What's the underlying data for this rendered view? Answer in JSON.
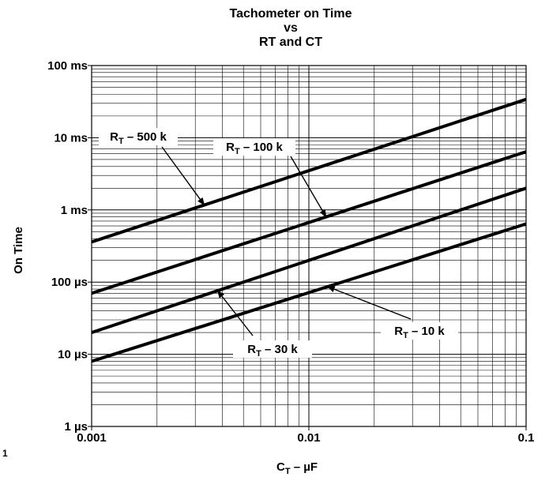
{
  "chart_data": {
    "type": "line",
    "title": [
      "Tachometer on Time",
      "vs",
      "RT and CT"
    ],
    "xlabel": {
      "main": "C",
      "sub": "T",
      "rest": " – µF"
    },
    "ylabel": "On Time",
    "x_scale": "log",
    "y_scale": "log",
    "xlim": [
      0.001,
      0.1
    ],
    "ylim_seconds": [
      1e-06,
      0.1
    ],
    "x_ticks": [
      {
        "value": 0.001,
        "label": "0.001"
      },
      {
        "value": 0.01,
        "label": "0.01"
      },
      {
        "value": 0.1,
        "label": "0.1"
      }
    ],
    "y_ticks": [
      {
        "value": 0.1,
        "label": "100 ms"
      },
      {
        "value": 0.01,
        "label": "10 ms"
      },
      {
        "value": 0.001,
        "label": "1 ms"
      },
      {
        "value": 0.0001,
        "label": "100 µs"
      },
      {
        "value": 1e-05,
        "label": "10 µs"
      },
      {
        "value": 1e-06,
        "label": "1 µs"
      }
    ],
    "grid": true,
    "series": [
      {
        "name": "RT – 500 k",
        "x": [
          0.001,
          0.1
        ],
        "y": [
          0.00036,
          0.034
        ]
      },
      {
        "name": "RT – 100 k",
        "x": [
          0.001,
          0.1
        ],
        "y": [
          7e-05,
          0.0064
        ]
      },
      {
        "name": "RT – 30 k",
        "x": [
          0.001,
          0.1
        ],
        "y": [
          2e-05,
          0.002
        ]
      },
      {
        "name": "RT – 10 k",
        "x": [
          0.001,
          0.1
        ],
        "y": [
          8e-06,
          0.00064
        ]
      }
    ],
    "annotations": [
      {
        "main": "R",
        "sub": "T",
        "rest": " – 500 k",
        "series": 0
      },
      {
        "main": "R",
        "sub": "T",
        "rest": " – 100 k",
        "series": 1
      },
      {
        "main": "R",
        "sub": "T",
        "rest": " – 30 k",
        "series": 2
      },
      {
        "main": "R",
        "sub": "T",
        "rest": " – 10 k",
        "series": 3
      }
    ],
    "figure_number": "1"
  }
}
